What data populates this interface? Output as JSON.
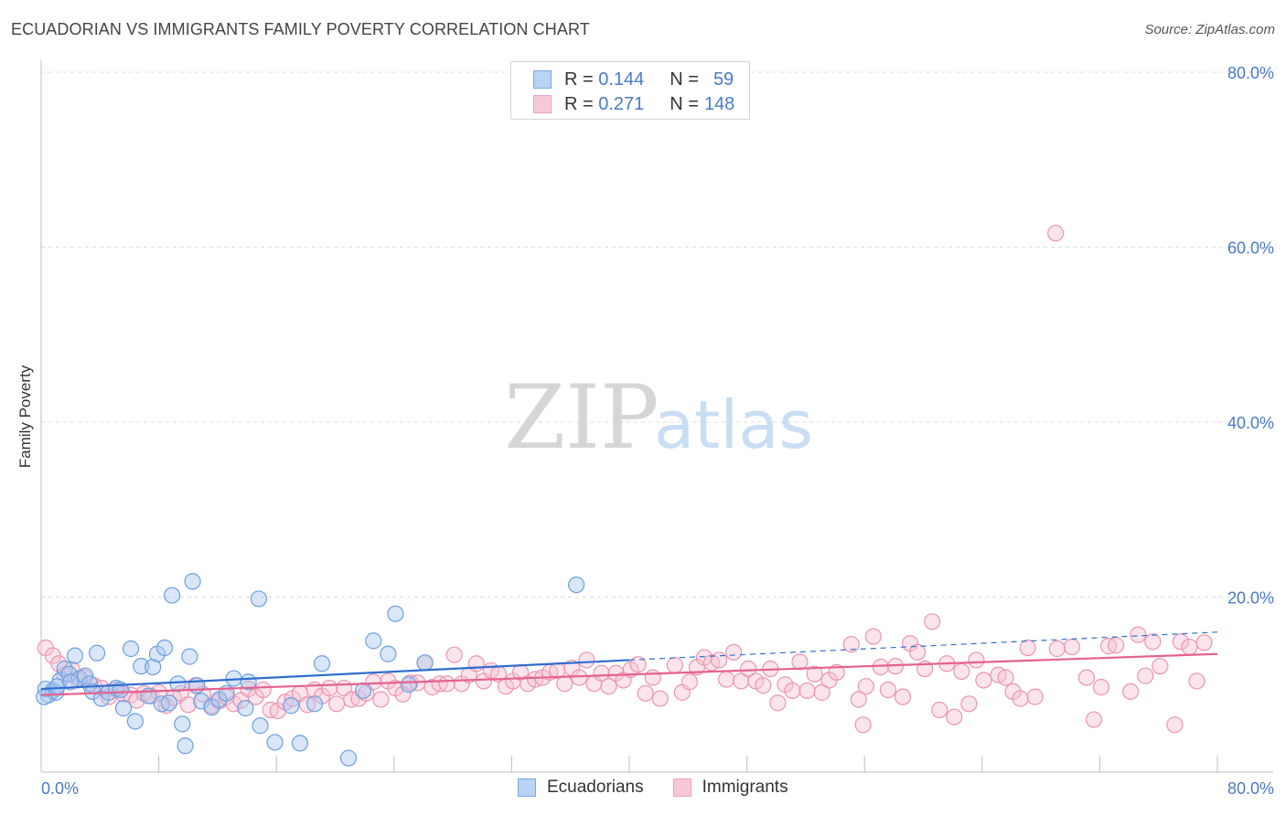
{
  "header": {
    "title": "ECUADORIAN VS IMMIGRANTS FAMILY POVERTY CORRELATION CHART",
    "source": "Source: ZipAtlas.com"
  },
  "watermark": {
    "zip": "ZIP",
    "atlas": "atlas"
  },
  "legend": {
    "r_label": "R =",
    "n_label": "N =",
    "series": [
      {
        "r": "0.144",
        "n": "59"
      },
      {
        "r": "0.271",
        "n": "148"
      }
    ]
  },
  "chart_data": {
    "type": "scatter",
    "title": "ECUADORIAN VS IMMIGRANTS FAMILY POVERTY CORRELATION CHART",
    "xlabel": "",
    "ylabel": "Family Poverty",
    "xlim": [
      0,
      80
    ],
    "ylim": [
      0,
      80
    ],
    "x_tick_labels": [
      "0.0%",
      "80.0%"
    ],
    "y_ticks": [
      20,
      40,
      60,
      80
    ],
    "y_tick_labels": [
      "20.0%",
      "40.0%",
      "60.0%",
      "80.0%"
    ],
    "x_grid_ticks": [
      0,
      8,
      16,
      24,
      32,
      40,
      48,
      56,
      64,
      72,
      80
    ],
    "grid": true,
    "legend_position": "top-center",
    "series": [
      {
        "name": "Ecuadorians",
        "color": "#a9c8f0",
        "edge": "#6d9fe0",
        "line_color": "#2f6fcf",
        "r": 0.144,
        "n": 59,
        "trend": {
          "x0": 0,
          "y0": 9.5,
          "x1": 40,
          "y1": 12.8,
          "dash_to_x": 80,
          "dash_to_y": 16.0
        },
        "points": [
          [
            0.3,
            9.5
          ],
          [
            0.5,
            8.8
          ],
          [
            0.8,
            9.3
          ],
          [
            1.0,
            9.1
          ],
          [
            1.3,
            10.5
          ],
          [
            1.6,
            11.8
          ],
          [
            1.9,
            11.2
          ],
          [
            2.3,
            13.3
          ],
          [
            2.6,
            10.7
          ],
          [
            3.0,
            11.0
          ],
          [
            3.3,
            10.1
          ],
          [
            3.5,
            9.2
          ],
          [
            3.8,
            13.6
          ],
          [
            4.1,
            8.4
          ],
          [
            4.6,
            9.1
          ],
          [
            5.1,
            9.6
          ],
          [
            5.6,
            7.3
          ],
          [
            6.1,
            14.1
          ],
          [
            6.4,
            5.8
          ],
          [
            6.8,
            12.1
          ],
          [
            7.3,
            8.7
          ],
          [
            7.6,
            12.0
          ],
          [
            7.9,
            13.5
          ],
          [
            8.2,
            7.8
          ],
          [
            8.4,
            14.2
          ],
          [
            8.7,
            7.9
          ],
          [
            8.9,
            20.2
          ],
          [
            9.3,
            10.1
          ],
          [
            9.6,
            5.5
          ],
          [
            9.8,
            3.0
          ],
          [
            10.1,
            13.2
          ],
          [
            10.3,
            21.8
          ],
          [
            10.6,
            9.9
          ],
          [
            10.9,
            8.1
          ],
          [
            11.6,
            7.4
          ],
          [
            12.1,
            8.3
          ],
          [
            13.1,
            10.7
          ],
          [
            13.9,
            7.3
          ],
          [
            14.1,
            10.3
          ],
          [
            14.8,
            19.8
          ],
          [
            14.9,
            5.3
          ],
          [
            15.9,
            3.4
          ],
          [
            17.0,
            7.6
          ],
          [
            17.6,
            3.3
          ],
          [
            18.6,
            7.8
          ],
          [
            19.1,
            12.4
          ],
          [
            20.9,
            1.6
          ],
          [
            21.9,
            9.3
          ],
          [
            22.6,
            15.0
          ],
          [
            23.6,
            13.5
          ],
          [
            24.1,
            18.1
          ],
          [
            25.0,
            10.0
          ],
          [
            26.1,
            12.5
          ],
          [
            36.4,
            21.4
          ],
          [
            0.2,
            8.6
          ],
          [
            1.1,
            9.8
          ],
          [
            2.0,
            10.3
          ],
          [
            5.4,
            9.4
          ],
          [
            12.6,
            9.0
          ]
        ]
      },
      {
        "name": "Immigrants",
        "color": "#f7c3d3",
        "edge": "#ec94b2",
        "line_color": "#e4628e",
        "r": 0.271,
        "n": 148,
        "trend": {
          "x0": 0,
          "y0": 8.8,
          "x1": 80,
          "y1": 13.5
        },
        "points": [
          [
            0.3,
            14.2
          ],
          [
            0.8,
            13.3
          ],
          [
            1.2,
            12.4
          ],
          [
            1.6,
            11.1
          ],
          [
            2.1,
            11.7
          ],
          [
            2.5,
            10.5
          ],
          [
            2.9,
            10.8
          ],
          [
            3.6,
            9.9
          ],
          [
            4.1,
            9.6
          ],
          [
            4.6,
            8.6
          ],
          [
            5.1,
            9.4
          ],
          [
            5.6,
            8.9
          ],
          [
            6.1,
            8.8
          ],
          [
            6.5,
            8.2
          ],
          [
            7.0,
            9.0
          ],
          [
            7.5,
            8.7
          ],
          [
            8.0,
            9.1
          ],
          [
            8.5,
            7.6
          ],
          [
            9.0,
            8.5
          ],
          [
            9.5,
            9.0
          ],
          [
            10.0,
            7.7
          ],
          [
            10.5,
            9.9
          ],
          [
            11.0,
            8.9
          ],
          [
            11.6,
            7.6
          ],
          [
            12.1,
            8.1
          ],
          [
            12.6,
            8.6
          ],
          [
            13.1,
            7.8
          ],
          [
            13.6,
            8.2
          ],
          [
            14.1,
            9.5
          ],
          [
            14.6,
            8.6
          ],
          [
            15.1,
            9.4
          ],
          [
            15.6,
            7.1
          ],
          [
            16.1,
            7.0
          ],
          [
            16.6,
            8.0
          ],
          [
            17.1,
            8.4
          ],
          [
            17.6,
            9.0
          ],
          [
            18.1,
            7.7
          ],
          [
            18.6,
            9.4
          ],
          [
            19.1,
            8.7
          ],
          [
            19.6,
            9.6
          ],
          [
            20.1,
            7.8
          ],
          [
            20.6,
            9.6
          ],
          [
            21.1,
            8.3
          ],
          [
            21.6,
            8.4
          ],
          [
            22.1,
            9.0
          ],
          [
            22.6,
            10.3
          ],
          [
            23.1,
            8.3
          ],
          [
            23.6,
            10.4
          ],
          [
            24.1,
            9.6
          ],
          [
            24.6,
            8.9
          ],
          [
            25.1,
            10.2
          ],
          [
            25.6,
            10.2
          ],
          [
            26.1,
            12.5
          ],
          [
            26.6,
            9.7
          ],
          [
            27.1,
            10.1
          ],
          [
            27.6,
            10.1
          ],
          [
            28.1,
            13.4
          ],
          [
            28.6,
            10.1
          ],
          [
            29.1,
            11.1
          ],
          [
            29.6,
            12.4
          ],
          [
            30.1,
            10.4
          ],
          [
            30.6,
            11.6
          ],
          [
            31.1,
            11.2
          ],
          [
            31.6,
            9.8
          ],
          [
            32.1,
            10.4
          ],
          [
            32.6,
            11.4
          ],
          [
            33.1,
            10.1
          ],
          [
            33.6,
            10.6
          ],
          [
            34.1,
            10.8
          ],
          [
            34.6,
            11.4
          ],
          [
            35.1,
            11.6
          ],
          [
            35.6,
            10.1
          ],
          [
            36.1,
            11.9
          ],
          [
            36.6,
            10.8
          ],
          [
            37.1,
            12.8
          ],
          [
            37.6,
            10.1
          ],
          [
            38.1,
            11.3
          ],
          [
            38.6,
            9.8
          ],
          [
            39.1,
            11.3
          ],
          [
            39.6,
            10.5
          ],
          [
            40.1,
            11.7
          ],
          [
            40.6,
            12.3
          ],
          [
            41.1,
            9.0
          ],
          [
            41.6,
            10.8
          ],
          [
            42.1,
            8.4
          ],
          [
            43.1,
            12.2
          ],
          [
            43.6,
            9.1
          ],
          [
            44.1,
            10.3
          ],
          [
            44.6,
            12.0
          ],
          [
            45.1,
            13.1
          ],
          [
            45.6,
            12.5
          ],
          [
            46.1,
            12.8
          ],
          [
            46.6,
            10.6
          ],
          [
            47.1,
            13.7
          ],
          [
            47.6,
            10.4
          ],
          [
            48.1,
            11.8
          ],
          [
            48.6,
            10.4
          ],
          [
            49.1,
            9.9
          ],
          [
            49.6,
            11.8
          ],
          [
            50.1,
            7.9
          ],
          [
            50.6,
            10.0
          ],
          [
            51.1,
            9.3
          ],
          [
            51.6,
            12.6
          ],
          [
            52.1,
            9.3
          ],
          [
            52.6,
            11.2
          ],
          [
            53.1,
            9.1
          ],
          [
            53.6,
            10.5
          ],
          [
            54.1,
            11.4
          ],
          [
            55.1,
            14.6
          ],
          [
            55.6,
            8.3
          ],
          [
            55.9,
            5.4
          ],
          [
            56.1,
            9.8
          ],
          [
            56.6,
            15.5
          ],
          [
            57.1,
            12.0
          ],
          [
            57.6,
            9.4
          ],
          [
            58.1,
            12.1
          ],
          [
            58.6,
            8.6
          ],
          [
            59.1,
            14.7
          ],
          [
            59.6,
            13.7
          ],
          [
            60.1,
            11.8
          ],
          [
            60.6,
            17.2
          ],
          [
            61.1,
            7.1
          ],
          [
            61.6,
            12.4
          ],
          [
            62.1,
            6.3
          ],
          [
            62.6,
            11.5
          ],
          [
            63.1,
            7.8
          ],
          [
            63.6,
            12.8
          ],
          [
            64.1,
            10.5
          ],
          [
            65.1,
            11.1
          ],
          [
            65.6,
            10.8
          ],
          [
            66.1,
            9.2
          ],
          [
            66.6,
            8.4
          ],
          [
            67.1,
            14.2
          ],
          [
            67.6,
            8.6
          ],
          [
            69.0,
            61.6
          ],
          [
            69.1,
            14.1
          ],
          [
            70.1,
            14.3
          ],
          [
            71.1,
            10.8
          ],
          [
            71.6,
            6.0
          ],
          [
            72.1,
            9.7
          ],
          [
            72.6,
            14.4
          ],
          [
            73.1,
            14.5
          ],
          [
            74.1,
            9.2
          ],
          [
            74.6,
            15.7
          ],
          [
            75.1,
            11.0
          ],
          [
            75.6,
            14.9
          ],
          [
            76.1,
            12.1
          ],
          [
            77.1,
            5.4
          ],
          [
            77.5,
            14.9
          ],
          [
            78.1,
            14.3
          ],
          [
            78.6,
            10.4
          ],
          [
            79.1,
            14.8
          ]
        ]
      }
    ]
  },
  "bottom_legend": [
    "Ecuadorians",
    "Immigrants"
  ]
}
